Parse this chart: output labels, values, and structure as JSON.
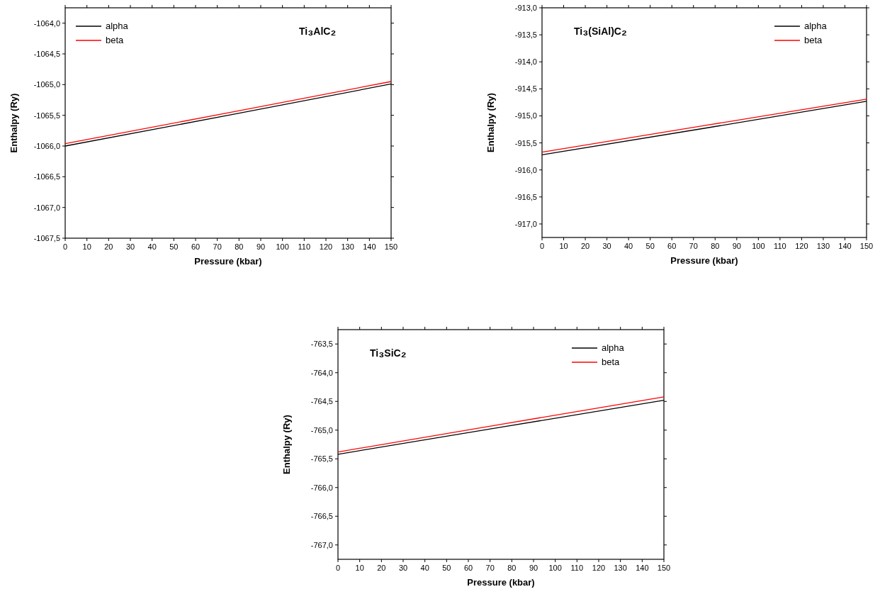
{
  "chart_data": [
    {
      "type": "line",
      "annotations": [
        "Ti₃AlC₂"
      ],
      "xlabel": "Pressure (kbar)",
      "ylabel": "Enthalpy (Ry)",
      "x": [
        0,
        75,
        150
      ],
      "xlim": [
        0,
        150
      ],
      "xticks": [
        0,
        10,
        20,
        30,
        40,
        50,
        60,
        70,
        80,
        90,
        100,
        110,
        120,
        130,
        140,
        150
      ],
      "ylim": [
        -1067.5,
        -1063.75
      ],
      "yticks": [
        {
          "value": -1067.5,
          "label": "-1067,5"
        },
        {
          "value": -1067,
          "label": "-1067,0"
        },
        {
          "value": -1066.5,
          "label": "-1066,5"
        },
        {
          "value": -1066,
          "label": "-1066,0"
        },
        {
          "value": -1065.5,
          "label": "-1065,5"
        },
        {
          "value": -1065,
          "label": "-1065,0"
        },
        {
          "value": -1064.5,
          "label": "-1064,5"
        },
        {
          "value": -1064,
          "label": "-1064,0"
        }
      ],
      "legend": "top left",
      "series": [
        {
          "name": "alpha",
          "color": "#000000",
          "values": [
            -1066.0,
            -1065.5,
            -1064.99
          ]
        },
        {
          "name": "beta",
          "color": "#ff0000",
          "values": [
            -1065.96,
            -1065.46,
            -1064.95
          ]
        }
      ]
    },
    {
      "type": "line",
      "annotations": [
        "Ti₃(SiAl)C₂"
      ],
      "xlabel": "Pressure (kbar)",
      "ylabel": "Enthalpy (Ry)",
      "x": [
        0,
        75,
        150
      ],
      "xlim": [
        0,
        150
      ],
      "xticks": [
        0,
        10,
        20,
        30,
        40,
        50,
        60,
        70,
        80,
        90,
        100,
        110,
        120,
        130,
        140,
        150
      ],
      "ylim": [
        -917.25,
        -913.0
      ],
      "yticks": [
        {
          "value": -917,
          "label": "-917,0"
        },
        {
          "value": -916.5,
          "label": "-916,5"
        },
        {
          "value": -916,
          "label": "-916,0"
        },
        {
          "value": -915.5,
          "label": "-915,5"
        },
        {
          "value": -915,
          "label": "-915,0"
        },
        {
          "value": -914.5,
          "label": "-914,5"
        },
        {
          "value": -914,
          "label": "-914,0"
        },
        {
          "value": -913.5,
          "label": "-913,5"
        },
        {
          "value": -913,
          "label": "-913,0"
        }
      ],
      "legend": "top right",
      "series": [
        {
          "name": "alpha",
          "color": "#000000",
          "values": [
            -915.72,
            -915.23,
            -914.73
          ]
        },
        {
          "name": "beta",
          "color": "#ff0000",
          "values": [
            -915.67,
            -915.18,
            -914.69
          ]
        }
      ]
    },
    {
      "type": "line",
      "annotations": [
        "Ti₃SiC₂"
      ],
      "xlabel": "Pressure (kbar)",
      "ylabel": "Enthalpy (Ry)",
      "x": [
        0,
        75,
        150
      ],
      "xlim": [
        0,
        150
      ],
      "xticks": [
        0,
        10,
        20,
        30,
        40,
        50,
        60,
        70,
        80,
        90,
        100,
        110,
        120,
        130,
        140,
        150
      ],
      "ylim": [
        -767.25,
        -763.25
      ],
      "yticks": [
        {
          "value": -767,
          "label": "-767,0"
        },
        {
          "value": -766.5,
          "label": "-766,5"
        },
        {
          "value": -766,
          "label": "-766,0"
        },
        {
          "value": -765.5,
          "label": "-765,5"
        },
        {
          "value": -765,
          "label": "-765,0"
        },
        {
          "value": -764.5,
          "label": "-764,5"
        },
        {
          "value": -764,
          "label": "-764,0"
        },
        {
          "value": -763.5,
          "label": "-763,5"
        }
      ],
      "legend": "top right",
      "series": [
        {
          "name": "alpha",
          "color": "#000000",
          "values": [
            -765.42,
            -764.95,
            -764.48
          ]
        },
        {
          "name": "beta",
          "color": "#ff0000",
          "values": [
            -765.38,
            -764.9,
            -764.42
          ]
        }
      ]
    }
  ]
}
